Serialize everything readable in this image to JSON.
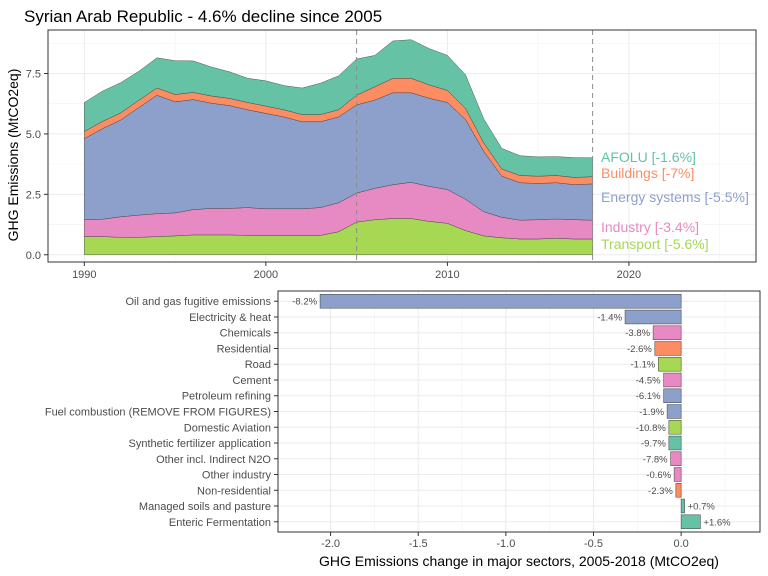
{
  "chart_data": [
    {
      "type": "area",
      "title": "Syrian Arab Republic - 4.6% decline since 2005",
      "ylabel": "GHG Emissions (MtCO2eq)",
      "xlabel": "",
      "xlim": [
        1988,
        2027
      ],
      "ylim": [
        -0.3,
        9.3
      ],
      "x_ticks": [
        1990,
        2000,
        2010,
        2020
      ],
      "y_ticks": [
        0.0,
        2.5,
        5.0,
        7.5
      ],
      "y_tick_labels": [
        "0.0",
        "2.5",
        "5.0",
        "7.5"
      ],
      "grid": true,
      "stacked": true,
      "reference_lines_x": [
        2005,
        2018
      ],
      "x": [
        1990,
        1991,
        1992,
        1993,
        1994,
        1995,
        1996,
        1997,
        1998,
        1999,
        2000,
        2001,
        2002,
        2003,
        2004,
        2005,
        2006,
        2007,
        2008,
        2009,
        2010,
        2011,
        2012,
        2013,
        2014,
        2015,
        2016,
        2017,
        2018
      ],
      "series": [
        {
          "name": "Transport [-5.6%]",
          "color": "#a6d854",
          "values": [
            0.75,
            0.75,
            0.72,
            0.72,
            0.75,
            0.78,
            0.82,
            0.82,
            0.82,
            0.8,
            0.8,
            0.8,
            0.8,
            0.8,
            0.95,
            1.35,
            1.45,
            1.5,
            1.5,
            1.38,
            1.3,
            1.0,
            0.78,
            0.7,
            0.65,
            0.65,
            0.68,
            0.65,
            0.65
          ]
        },
        {
          "name": "Industry [-3.4%]",
          "color": "#e78ac3",
          "values": [
            0.7,
            0.72,
            0.85,
            0.92,
            0.95,
            0.95,
            1.05,
            1.1,
            1.1,
            1.15,
            1.1,
            1.1,
            1.1,
            1.15,
            1.2,
            1.2,
            1.3,
            1.4,
            1.5,
            1.45,
            1.4,
            1.3,
            1.0,
            0.85,
            0.78,
            0.8,
            0.8,
            0.8,
            0.78
          ]
        },
        {
          "name": "Energy systems [-5.5%]",
          "color": "#8da0cb",
          "values": [
            3.35,
            3.75,
            4.0,
            4.45,
            4.9,
            4.6,
            4.55,
            4.35,
            4.25,
            4.05,
            3.95,
            3.8,
            3.6,
            3.55,
            3.55,
            3.65,
            3.65,
            3.8,
            3.7,
            3.65,
            3.6,
            3.3,
            2.5,
            1.7,
            1.55,
            1.5,
            1.5,
            1.45,
            1.5
          ]
        },
        {
          "name": "Buildings [-7%]",
          "color": "#fc8d62",
          "values": [
            0.3,
            0.3,
            0.3,
            0.3,
            0.3,
            0.3,
            0.3,
            0.3,
            0.3,
            0.3,
            0.3,
            0.3,
            0.3,
            0.3,
            0.3,
            0.4,
            0.55,
            0.6,
            0.6,
            0.55,
            0.5,
            0.45,
            0.35,
            0.3,
            0.3,
            0.3,
            0.3,
            0.3,
            0.3
          ]
        },
        {
          "name": "AFOLU [-1.6%]",
          "color": "#66c2a5",
          "values": [
            1.2,
            1.25,
            1.25,
            1.2,
            1.25,
            1.4,
            1.3,
            1.2,
            1.1,
            1.0,
            1.05,
            1.0,
            1.1,
            1.3,
            1.4,
            1.5,
            1.3,
            1.55,
            1.6,
            1.5,
            1.45,
            1.4,
            1.0,
            0.85,
            0.82,
            0.8,
            0.78,
            0.82,
            0.78
          ]
        }
      ],
      "legend_position": "right"
    },
    {
      "type": "bar",
      "orientation": "horizontal",
      "xlabel": "GHG Emissions change in major sectors, 2005-2018 (MtCO2eq)",
      "ylabel": "",
      "xlim": [
        -2.3,
        0.45
      ],
      "x_ticks": [
        -2.0,
        -1.5,
        -1.0,
        -0.5,
        0.0
      ],
      "x_tick_labels": [
        "-2.0",
        "-1.5",
        "-1.0",
        "-0.5",
        "0.0"
      ],
      "grid": true,
      "categories": [
        "Oil and gas fugitive emissions",
        "Electricity & heat",
        "Chemicals",
        "Residential",
        "Road",
        "Cement",
        "Petroleum refining",
        "Fuel combustion (REMOVE FROM FIGURES)",
        "Domestic Aviation",
        "Synthetic fertilizer application",
        "Other incl. Indirect N2O",
        "Other industry",
        "Non-residential",
        "Managed soils and pasture",
        "Enteric Fermentation"
      ],
      "values": [
        -2.06,
        -0.32,
        -0.16,
        -0.15,
        -0.13,
        -0.1,
        -0.1,
        -0.08,
        -0.07,
        -0.07,
        -0.06,
        -0.04,
        -0.03,
        0.02,
        0.11
      ],
      "labels": [
        "-8.2%",
        "-1.4%",
        "-3.8%",
        "-2.6%",
        "-1.1%",
        "-4.5%",
        "-6.1%",
        "-1.9%",
        "-10.8%",
        "-9.7%",
        "-7.8%",
        "-0.6%",
        "-2.3%",
        "+0.7%",
        "+1.6%"
      ],
      "colors": [
        "#8da0cb",
        "#8da0cb",
        "#e78ac3",
        "#fc8d62",
        "#a6d854",
        "#e78ac3",
        "#8da0cb",
        "#8da0cb",
        "#a6d854",
        "#66c2a5",
        "#e78ac3",
        "#e78ac3",
        "#fc8d62",
        "#66c2a5",
        "#66c2a5"
      ]
    }
  ]
}
